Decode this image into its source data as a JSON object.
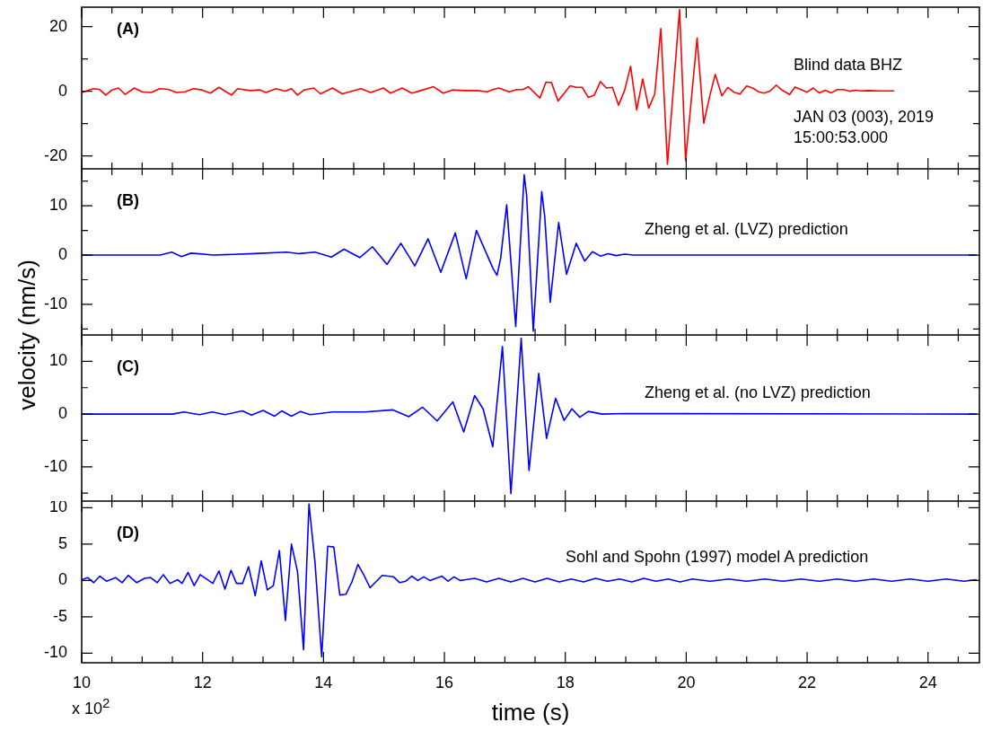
{
  "chart_data": [
    {
      "type": "line",
      "title": "(A)",
      "annotations": [
        "Blind data BHZ",
        "JAN 03 (003), 2019",
        "15:00:53.000"
      ],
      "tick_labels": "y",
      "xlim": [
        10,
        24.85
      ],
      "xticks": [
        10,
        {
          "value": 10.5,
          "label": null
        },
        {
          "value": 11,
          "label": null
        },
        {
          "value": 11.5,
          "label": null
        },
        12,
        {
          "value": 12.5,
          "label": null
        },
        {
          "value": 13,
          "label": null
        },
        {
          "value": 13.5,
          "label": null
        },
        14,
        {
          "value": 14.5,
          "label": null
        },
        {
          "value": 15,
          "label": null
        },
        {
          "value": 15.5,
          "label": null
        },
        16,
        {
          "value": 16.5,
          "label": null
        },
        {
          "value": 17,
          "label": null
        },
        {
          "value": 17.5,
          "label": null
        },
        18,
        {
          "value": 18.5,
          "label": null
        },
        {
          "value": 19,
          "label": null
        },
        {
          "value": 19.5,
          "label": null
        },
        20,
        {
          "value": 20.5,
          "label": null
        },
        {
          "value": 21,
          "label": null
        },
        {
          "value": 21.5,
          "label": null
        },
        22,
        {
          "value": 22.5,
          "label": null
        },
        {
          "value": 23,
          "label": null
        },
        {
          "value": 23.5,
          "label": null
        },
        24,
        {
          "value": 24.5,
          "label": null
        }
      ],
      "ylim": [
        -24,
        26
      ],
      "yticks": [
        -20,
        {
          "value": -10,
          "label": null
        },
        0,
        {
          "value": 10,
          "label": null
        },
        20
      ],
      "series": [
        {
          "color": "#ff0000",
          "x": [
            10.0,
            10.19,
            10.29,
            10.4,
            10.5,
            10.61,
            10.72,
            10.87,
            11.0,
            11.15,
            11.29,
            11.43,
            11.57,
            11.71,
            11.85,
            11.99,
            12.13,
            12.27,
            12.48,
            12.58,
            12.79,
            12.95,
            13.05,
            13.21,
            13.37,
            13.47,
            13.57,
            13.68,
            13.84,
            13.95,
            14.15,
            14.31,
            14.47,
            14.62,
            14.78,
            14.99,
            15.11,
            15.3,
            15.46,
            15.61,
            15.82,
            15.98,
            16.13,
            16.34,
            16.55,
            16.71,
            16.8,
            16.9,
            17.07,
            17.2,
            17.3,
            17.39,
            17.58,
            17.68,
            17.77,
            17.88,
            18.08,
            18.18,
            18.28,
            18.38,
            18.48,
            18.58,
            18.68,
            18.78,
            18.88,
            18.98,
            19.08,
            19.18,
            19.28,
            19.38,
            19.48,
            19.58,
            19.69,
            19.89,
            19.99,
            20.18,
            20.29,
            20.39,
            20.48,
            20.59,
            20.69,
            20.79,
            20.89,
            21.0,
            21.1,
            21.2,
            21.29,
            21.39,
            21.49,
            21.59,
            21.71,
            21.8,
            21.9,
            22.0,
            22.1,
            22.2,
            22.3,
            22.4,
            22.5,
            22.6,
            22.7,
            22.8,
            22.9,
            23.0,
            23.2,
            23.44
          ],
          "values": [
            -0.4,
            0.8,
            0.6,
            -1.2,
            0.4,
            1.0,
            -1.0,
            1.0,
            -0.2,
            -0.4,
            0.8,
            0.6,
            -0.4,
            -0.2,
            0.8,
            0.4,
            -0.6,
            1.2,
            -1.2,
            0.8,
            0.2,
            0.4,
            -0.4,
            0.8,
            0,
            0.8,
            -1.2,
            0.4,
            1.0,
            -0.8,
            1.0,
            -0.8,
            0,
            0.8,
            -0.4,
            1.0,
            -0.6,
            1.0,
            -0.6,
            0.2,
            1.4,
            -0.6,
            0.4,
            0.2,
            0.2,
            -0.2,
            0.5,
            1.0,
            -0.2,
            0.5,
            0.5,
            1.4,
            -2.1,
            2.8,
            2.7,
            -3.0,
            1.7,
            1.2,
            1.2,
            -1.9,
            -1.2,
            3.0,
            1.0,
            1.2,
            -4.3,
            0.2,
            7.7,
            -5.8,
            3.8,
            -5.2,
            -0.8,
            19.4,
            -22.6,
            25.3,
            -21.4,
            16.5,
            -9.9,
            -1.4,
            5.2,
            -1.4,
            1.2,
            -0.3,
            -0.9,
            1.6,
            1.0,
            -0.2,
            -0.6,
            0.1,
            1.9,
            0.3,
            -1.0,
            1.3,
            0.5,
            -0.3,
            1.0,
            -0.5,
            0.3,
            -0.5,
            0.5,
            0.5,
            0,
            0.3,
            0.1,
            0.2,
            0.1,
            0.1
          ]
        }
      ]
    },
    {
      "type": "line",
      "title": "(B)",
      "annotations": [
        "Zheng et al. (LVZ) prediction"
      ],
      "tick_labels": "y",
      "xlim": [
        10,
        24.85
      ],
      "xticks": [
        10,
        {
          "value": 10.5,
          "label": null
        },
        {
          "value": 11,
          "label": null
        },
        {
          "value": 11.5,
          "label": null
        },
        12,
        {
          "value": 12.5,
          "label": null
        },
        {
          "value": 13,
          "label": null
        },
        {
          "value": 13.5,
          "label": null
        },
        14,
        {
          "value": 14.5,
          "label": null
        },
        {
          "value": 15,
          "label": null
        },
        {
          "value": 15.5,
          "label": null
        },
        16,
        {
          "value": 16.5,
          "label": null
        },
        {
          "value": 17,
          "label": null
        },
        {
          "value": 17.5,
          "label": null
        },
        18,
        {
          "value": 18.5,
          "label": null
        },
        {
          "value": 19,
          "label": null
        },
        {
          "value": 19.5,
          "label": null
        },
        20,
        {
          "value": 20.5,
          "label": null
        },
        {
          "value": 21,
          "label": null
        },
        {
          "value": 21.5,
          "label": null
        },
        22,
        {
          "value": 22.5,
          "label": null
        },
        {
          "value": 23,
          "label": null
        },
        {
          "value": 23.5,
          "label": null
        },
        24,
        {
          "value": 24.5,
          "label": null
        }
      ],
      "ylim": [
        -16.2,
        17.5
      ],
      "yticks": [
        {
          "value": -15,
          "label": null
        },
        -10,
        {
          "value": -5,
          "label": null
        },
        0,
        {
          "value": 5,
          "label": null
        },
        10,
        {
          "value": 15,
          "label": null
        }
      ],
      "series": [
        {
          "color": "#0000ff",
          "x": [
            10.0,
            11.3,
            11.49,
            11.65,
            11.81,
            12.18,
            12.86,
            13.39,
            13.6,
            13.86,
            14.13,
            14.34,
            14.6,
            14.81,
            15.05,
            15.28,
            15.51,
            15.73,
            15.94,
            16.18,
            16.36,
            16.53,
            16.8,
            16.87,
            16.93,
            17.03,
            17.18,
            17.32,
            17.36,
            17.47,
            17.61,
            17.66,
            17.75,
            17.89,
            18.02,
            18.18,
            18.32,
            18.45,
            18.58,
            18.71,
            18.84,
            18.98,
            19.13,
            24.8
          ],
          "values": [
            0,
            0,
            0.6,
            -0.3,
            0.4,
            0,
            0.3,
            0.6,
            0.3,
            0.6,
            -0.4,
            1.2,
            -0.5,
            1.7,
            -1.9,
            2.4,
            -2.2,
            3.3,
            -3.5,
            4.5,
            -4.8,
            5.0,
            -2.6,
            -4.1,
            -0.7,
            10.2,
            -14.5,
            16.3,
            12.1,
            -15.4,
            12.9,
            7.8,
            -9.6,
            6.6,
            -3.9,
            2.4,
            -1.2,
            0.7,
            -0.2,
            0.3,
            -0.1,
            0.2,
            0,
            0
          ]
        }
      ]
    },
    {
      "type": "line",
      "title": "(C)",
      "annotations": [
        "Zheng et al. (no LVZ) prediction"
      ],
      "ylabel": "velocity (nm/s)",
      "tick_labels": "y",
      "xlim": [
        10,
        24.85
      ],
      "xticks": [
        10,
        {
          "value": 10.5,
          "label": null
        },
        {
          "value": 11,
          "label": null
        },
        {
          "value": 11.5,
          "label": null
        },
        12,
        {
          "value": 12.5,
          "label": null
        },
        {
          "value": 13,
          "label": null
        },
        {
          "value": 13.5,
          "label": null
        },
        14,
        {
          "value": 14.5,
          "label": null
        },
        {
          "value": 15,
          "label": null
        },
        {
          "value": 15.5,
          "label": null
        },
        16,
        {
          "value": 16.5,
          "label": null
        },
        {
          "value": 17,
          "label": null
        },
        {
          "value": 17.5,
          "label": null
        },
        18,
        {
          "value": 18.5,
          "label": null
        },
        {
          "value": 19,
          "label": null
        },
        {
          "value": 19.5,
          "label": null
        },
        20,
        {
          "value": 20.5,
          "label": null
        },
        {
          "value": 21,
          "label": null
        },
        {
          "value": 21.5,
          "label": null
        },
        22,
        {
          "value": 22.5,
          "label": null
        },
        {
          "value": 23,
          "label": null
        },
        {
          "value": 23.5,
          "label": null
        },
        24,
        {
          "value": 24.5,
          "label": null
        }
      ],
      "ylim": [
        -16.5,
        15
      ],
      "yticks": [
        {
          "value": -15,
          "label": null
        },
        -10,
        {
          "value": -5,
          "label": null
        },
        0,
        {
          "value": 5,
          "label": null
        },
        10
      ],
      "series": [
        {
          "color": "#0000ff",
          "x": [
            10.0,
            11.5,
            11.69,
            11.95,
            12.16,
            12.37,
            12.66,
            12.81,
            13.0,
            13.19,
            13.31,
            13.47,
            13.62,
            13.78,
            14.15,
            14.68,
            15.15,
            15.41,
            15.64,
            15.88,
            16.14,
            16.32,
            16.5,
            16.64,
            16.8,
            16.96,
            17.1,
            17.27,
            17.4,
            17.56,
            17.69,
            17.84,
            17.98,
            18.11,
            18.24,
            18.38,
            18.61,
            18.97,
            24.8
          ],
          "values": [
            0,
            0,
            0.4,
            -0.1,
            0.4,
            -0.1,
            0.6,
            -0.2,
            0.7,
            -0.4,
            0.6,
            -0.4,
            0.5,
            -0.1,
            0.4,
            0.4,
            0.8,
            -0.5,
            1.3,
            -1.3,
            2.3,
            -3.4,
            3.5,
            1.0,
            -6.2,
            12.8,
            -15.1,
            14.4,
            -10.7,
            7.7,
            -4.6,
            3.0,
            -1.2,
            1.0,
            -0.6,
            0.5,
            0,
            0.1,
            0
          ]
        }
      ]
    },
    {
      "type": "line",
      "title": "(D)",
      "annotations": [
        "Sohl and Spohn (1997) model A prediction",
        "x 10$^{2}$"
      ],
      "xlabel": "time (s)",
      "xlim": [
        10,
        24.85
      ],
      "xticks": [
        10,
        {
          "value": 10.5,
          "label": null
        },
        {
          "value": 11,
          "label": null
        },
        {
          "value": 11.5,
          "label": null
        },
        12,
        {
          "value": 12.5,
          "label": null
        },
        {
          "value": 13,
          "label": null
        },
        {
          "value": 13.5,
          "label": null
        },
        14,
        {
          "value": 14.5,
          "label": null
        },
        {
          "value": 15,
          "label": null
        },
        {
          "value": 15.5,
          "label": null
        },
        16,
        {
          "value": 16.5,
          "label": null
        },
        {
          "value": 17,
          "label": null
        },
        {
          "value": 17.5,
          "label": null
        },
        18,
        {
          "value": 18.5,
          "label": null
        },
        {
          "value": 19,
          "label": null
        },
        {
          "value": 19.5,
          "label": null
        },
        20,
        {
          "value": 20.5,
          "label": null
        },
        {
          "value": 21,
          "label": null
        },
        {
          "value": 21.5,
          "label": null
        },
        22,
        {
          "value": 22.5,
          "label": null
        },
        {
          "value": 23,
          "label": null
        },
        {
          "value": 23.5,
          "label": null
        },
        24,
        {
          "value": 24.5,
          "label": null
        }
      ],
      "ylim": [
        -11.3,
        10.9
      ],
      "yticks": [
        -10,
        -5,
        0,
        5,
        10
      ],
      "series": [
        {
          "color": "#0000ff",
          "x": [
            10.0,
            10.1,
            10.2,
            10.3,
            10.41,
            10.56,
            10.67,
            10.77,
            10.91,
            11.04,
            11.14,
            11.25,
            11.35,
            11.46,
            11.59,
            11.66,
            11.76,
            11.86,
            11.96,
            12.17,
            12.27,
            12.37,
            12.47,
            12.56,
            12.66,
            12.76,
            12.87,
            12.97,
            13.07,
            13.17,
            13.27,
            13.37,
            13.47,
            13.57,
            13.67,
            13.76,
            13.86,
            13.97,
            14.07,
            14.17,
            14.27,
            14.37,
            14.47,
            14.57,
            14.67,
            14.77,
            14.97,
            15.16,
            15.26,
            15.36,
            15.46,
            15.56,
            15.66,
            15.76,
            15.96,
            16.06,
            16.16,
            16.26,
            16.35,
            16.5,
            16.7,
            16.9,
            17.1,
            17.3,
            17.5,
            17.7,
            17.9,
            18.1,
            18.3,
            18.5,
            18.7,
            18.9,
            19.1,
            19.3,
            19.5,
            19.7,
            19.9,
            20.1,
            20.4,
            20.7,
            21.0,
            21.3,
            21.6,
            21.9,
            22.2,
            22.5,
            22.8,
            23.1,
            23.4,
            23.7,
            24.0,
            24.3,
            24.6,
            24.8
          ],
          "values": [
            0.1,
            0.4,
            -0.3,
            0.6,
            -0.1,
            0.4,
            -0.3,
            0.7,
            -0.3,
            0.3,
            0.4,
            -0.3,
            0.8,
            -0.4,
            0.1,
            -0.4,
            1.1,
            -0.7,
            0.8,
            -0.4,
            1.3,
            -1.2,
            1.4,
            -0.4,
            -0.4,
            1.9,
            -2.1,
            2.7,
            -1.3,
            -0.7,
            4.1,
            -5.5,
            5.0,
            1.2,
            -9.5,
            10.5,
            2.4,
            -10.5,
            4.7,
            4.6,
            -2.0,
            -1.9,
            -0.2,
            2.2,
            0.7,
            -1.0,
            0.7,
            0.5,
            -0.3,
            -0.1,
            0.6,
            0,
            0.5,
            0,
            0.6,
            -0.1,
            0.5,
            0,
            0.1,
            0.3,
            -0.2,
            0.3,
            -0.2,
            0.3,
            -0.2,
            0.3,
            -0.2,
            0.2,
            -0.2,
            0.3,
            -0.1,
            0.2,
            -0.2,
            0.3,
            -0.1,
            0.2,
            -0.2,
            0.2,
            -0.1,
            0.2,
            -0.1,
            0.2,
            -0.1,
            0.2,
            -0.1,
            0.2,
            -0.1,
            0.2,
            -0.1,
            0.2,
            -0.1,
            0.2,
            -0.1,
            0.1
          ]
        }
      ]
    }
  ]
}
